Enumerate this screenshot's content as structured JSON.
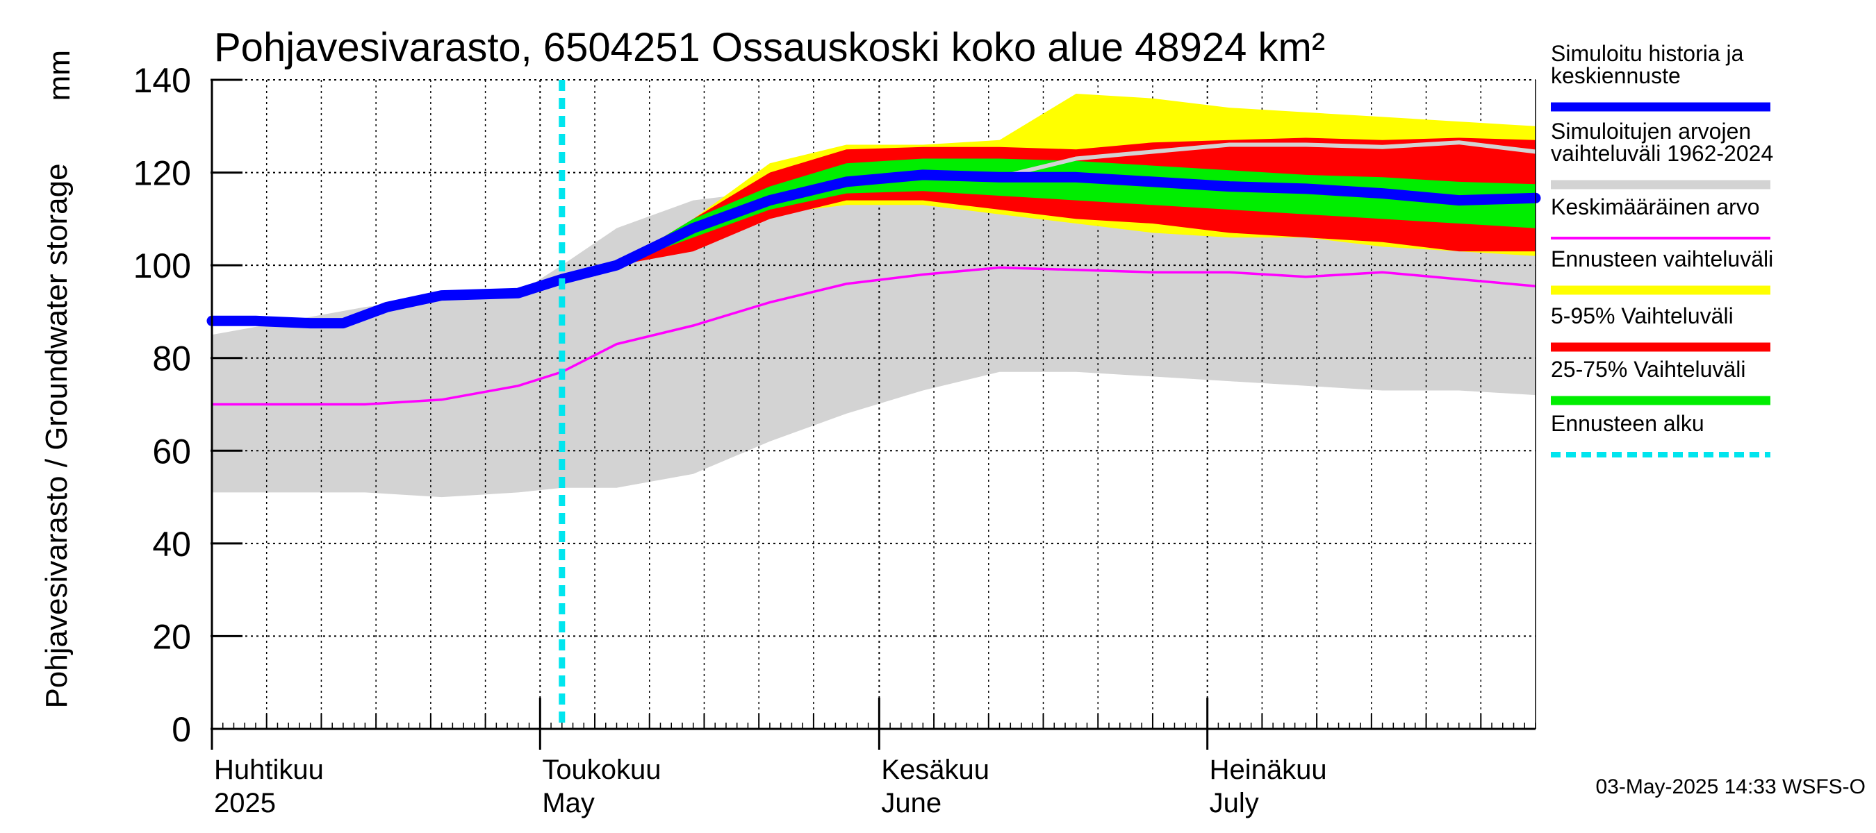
{
  "chart_data": {
    "type": "area",
    "title": "Pohjavesivarasto, 6504251 Ossauskoski koko alue 48924 km²",
    "ylabel": "Pohjavesivarasto / Groundwater storage",
    "yunit": "mm",
    "ylim": [
      0,
      140
    ],
    "yticks": [
      0,
      20,
      40,
      60,
      80,
      100,
      120,
      140
    ],
    "xlim": [
      "2025-04-01",
      "2025-07-31"
    ],
    "grid": true,
    "legend_position": "right",
    "month_labels": [
      {
        "fi": "Huhtikuu",
        "en": "2025"
      },
      {
        "fi": "Toukokuu",
        "en": "May"
      },
      {
        "fi": "Kesäkuu",
        "en": "June"
      },
      {
        "fi": "Heinäkuu",
        "en": "July"
      }
    ],
    "forecast_start": "2025-05-03",
    "footer": "03-May-2025 14:33 WSFS-O",
    "legend": [
      {
        "label": "Simuloitu historia ja keskiennuste",
        "lines": [
          "Simuloitu historia ja",
          "keskiennuste"
        ],
        "color": "#0000ff",
        "style": "thick"
      },
      {
        "label": "Simuloitujen arvojen vaihteluväli 1962-2024",
        "lines": [
          "Simuloitujen arvojen",
          "vaihteluväli 1962-2024"
        ],
        "color": "#d3d3d3",
        "style": "thick"
      },
      {
        "label": "Keskimääräinen arvo",
        "lines": [
          "Keskimääräinen arvo"
        ],
        "color": "#ff00ff",
        "style": "thin"
      },
      {
        "label": "Ennusteen vaihteluväli",
        "lines": [
          "Ennusteen vaihteluväli"
        ],
        "color": "#ffff00",
        "style": "thick"
      },
      {
        "label": "5-95% Vaihteluväli",
        "lines": [
          "5-95% Vaihteluväli"
        ],
        "color": "#ff0000",
        "style": "thick"
      },
      {
        "label": "25-75% Vaihteluväli",
        "lines": [
          "25-75% Vaihteluväli"
        ],
        "color": "#00ee00",
        "style": "thick"
      },
      {
        "label": "Ennusteen alku",
        "lines": [
          "Ennusteen alku"
        ],
        "color": "#00e5ee",
        "style": "dashed"
      }
    ],
    "hist_range": {
      "dates": [
        "2025-04-01",
        "2025-04-08",
        "2025-04-15",
        "2025-04-22",
        "2025-04-29",
        "2025-05-03",
        "2025-05-08",
        "2025-05-15",
        "2025-05-22",
        "2025-05-29",
        "2025-06-05",
        "2025-06-12",
        "2025-06-19",
        "2025-06-26",
        "2025-07-03",
        "2025-07-10",
        "2025-07-17",
        "2025-07-24",
        "2025-07-31"
      ],
      "min": [
        51,
        51,
        51,
        50,
        51,
        52,
        52,
        55,
        62,
        68,
        73,
        77,
        77,
        76,
        75,
        74,
        73,
        73,
        72
      ],
      "max": [
        85,
        88,
        91,
        93,
        94,
        100,
        108,
        114,
        116,
        116,
        117,
        118,
        119,
        119,
        120,
        121,
        121,
        122,
        122
      ]
    },
    "mean": {
      "dates": [
        "2025-04-01",
        "2025-04-08",
        "2025-04-15",
        "2025-04-22",
        "2025-04-29",
        "2025-05-03",
        "2025-05-08",
        "2025-05-15",
        "2025-05-22",
        "2025-05-29",
        "2025-06-05",
        "2025-06-12",
        "2025-06-19",
        "2025-06-26",
        "2025-07-03",
        "2025-07-10",
        "2025-07-17",
        "2025-07-24",
        "2025-07-31"
      ],
      "values": [
        70,
        70,
        70,
        71,
        74,
        77,
        83,
        87,
        92,
        96,
        98,
        99.5,
        99,
        98.5,
        98.5,
        97.5,
        98.5,
        97,
        95.5
      ]
    },
    "simulated": {
      "dates": [
        "2025-04-01",
        "2025-04-05",
        "2025-04-10",
        "2025-04-13",
        "2025-04-17",
        "2025-04-22",
        "2025-04-29",
        "2025-05-03",
        "2025-05-08",
        "2025-05-15",
        "2025-05-22",
        "2025-05-29",
        "2025-06-05",
        "2025-06-12",
        "2025-06-19",
        "2025-06-26",
        "2025-07-03",
        "2025-07-10",
        "2025-07-17",
        "2025-07-24",
        "2025-07-31"
      ],
      "values": [
        88,
        88,
        87.5,
        87.5,
        91,
        93.5,
        94,
        97,
        100,
        108,
        114,
        118,
        119.5,
        119,
        119,
        118,
        117,
        116.5,
        115.5,
        114,
        114.5
      ]
    },
    "hist_max_line": {
      "dates": [
        "2025-06-12",
        "2025-06-19",
        "2025-06-26",
        "2025-07-03",
        "2025-07-10",
        "2025-07-17",
        "2025-07-24",
        "2025-07-31"
      ],
      "values": [
        119,
        123,
        124.5,
        126,
        126,
        125.5,
        126.5,
        124.5
      ]
    },
    "forecast_range": {
      "dates": [
        "2025-05-08",
        "2025-05-15",
        "2025-05-22",
        "2025-05-29",
        "2025-06-05",
        "2025-06-12",
        "2025-06-19",
        "2025-06-26",
        "2025-07-03",
        "2025-07-10",
        "2025-07-17",
        "2025-07-24",
        "2025-07-31"
      ],
      "min": [
        100,
        106,
        111,
        113,
        113,
        111,
        109,
        107,
        106,
        106,
        104,
        103,
        102
      ],
      "max": [
        100,
        110,
        122,
        126,
        126,
        127,
        137,
        136,
        134,
        133,
        132,
        131,
        130
      ]
    },
    "p5_95": {
      "dates": [
        "2025-05-08",
        "2025-05-15",
        "2025-05-22",
        "2025-05-29",
        "2025-06-05",
        "2025-06-12",
        "2025-06-19",
        "2025-06-26",
        "2025-07-03",
        "2025-07-10",
        "2025-07-17",
        "2025-07-24",
        "2025-07-31"
      ],
      "min": [
        100,
        103,
        110,
        114,
        114,
        112,
        110,
        109,
        107,
        106,
        105,
        103,
        103
      ],
      "max": [
        100,
        110,
        120,
        125,
        125.5,
        125.5,
        125,
        126.5,
        127,
        127.5,
        127,
        127.5,
        127
      ]
    },
    "p25_75": {
      "dates": [
        "2025-05-08",
        "2025-05-15",
        "2025-05-22",
        "2025-05-29",
        "2025-06-05",
        "2025-06-12",
        "2025-06-19",
        "2025-06-26",
        "2025-07-03",
        "2025-07-10",
        "2025-07-17",
        "2025-07-24",
        "2025-07-31"
      ],
      "min": [
        100,
        106,
        112,
        115.5,
        116,
        115,
        114,
        113,
        112,
        111,
        110,
        109,
        108
      ],
      "max": [
        100,
        110,
        117,
        122,
        123,
        123,
        122.5,
        121.5,
        120.5,
        119.5,
        119,
        118,
        117.5
      ]
    }
  }
}
